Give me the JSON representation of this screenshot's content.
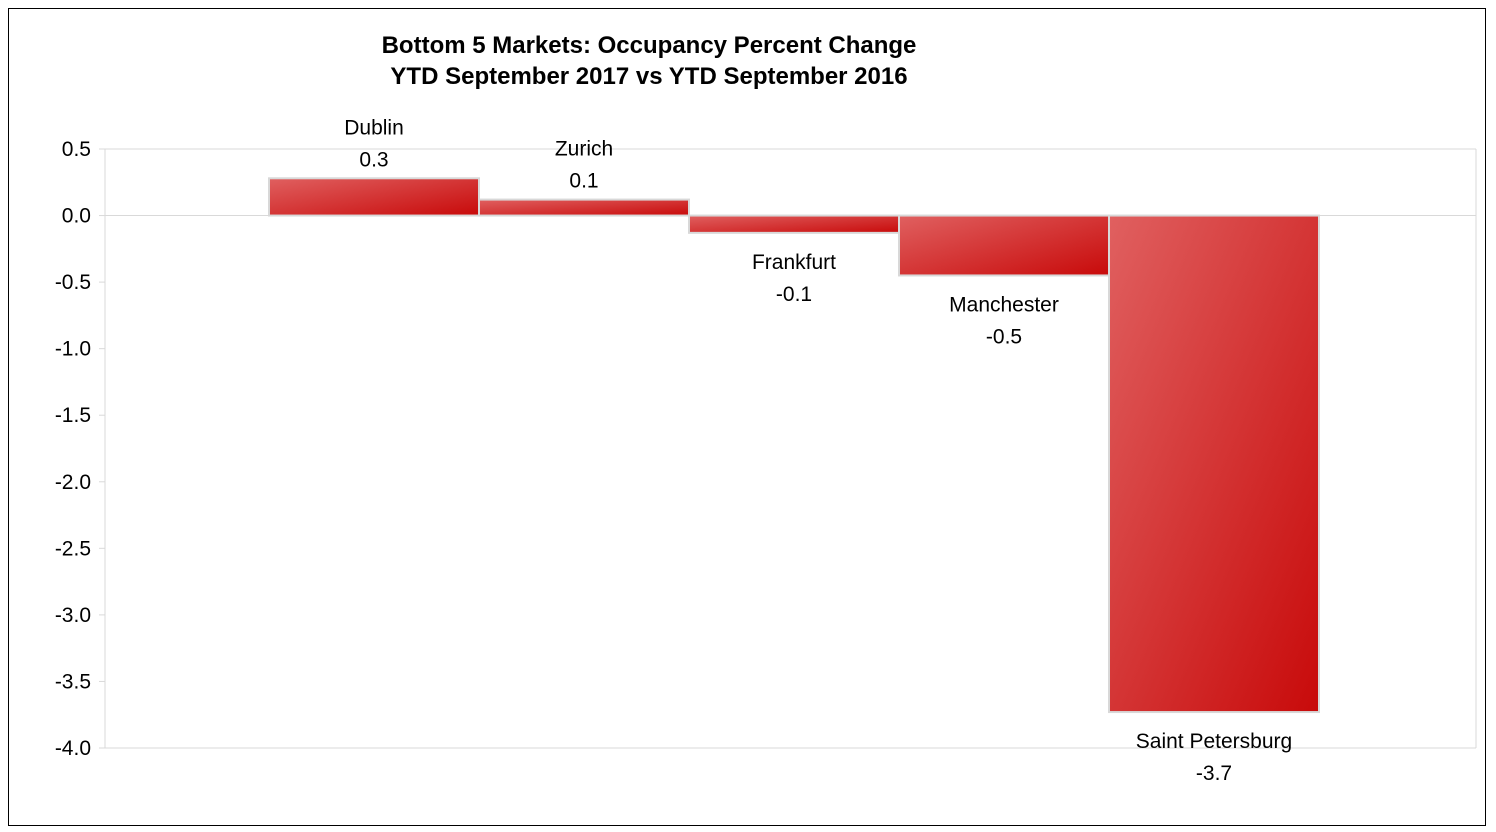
{
  "chart_data": {
    "type": "bar",
    "title_lines": [
      "Bottom 5 Markets: Occupancy Percent Change",
      "YTD September 2017 vs YTD September 2016"
    ],
    "categories": [
      "Dublin",
      "Zurich",
      "Frankfurt",
      "Manchester",
      "Saint Petersburg"
    ],
    "values": [
      0.28,
      0.12,
      -0.13,
      -0.45,
      -3.73
    ],
    "value_labels": [
      "0.3",
      "0.1",
      "-0.1",
      "-0.5",
      "-3.7"
    ],
    "ylim": [
      -4.0,
      0.5
    ],
    "yticks": [
      "0.5",
      "0.0",
      "-0.5",
      "-1.0",
      "-1.5",
      "-2.0",
      "-2.5",
      "-3.0",
      "-3.5",
      "-4.0"
    ],
    "ytick_values": [
      0.5,
      0.0,
      -0.5,
      -1.0,
      -1.5,
      -2.0,
      -2.5,
      -3.0,
      -3.5,
      -4.0
    ],
    "xlabel": "",
    "ylabel": "",
    "grid": false,
    "legend": "none",
    "colors": {
      "bar_light": "#e06060",
      "bar_dark": "#c80a0a",
      "bar_border": "#d8d8d8",
      "axis": "#d9d9d9"
    }
  }
}
